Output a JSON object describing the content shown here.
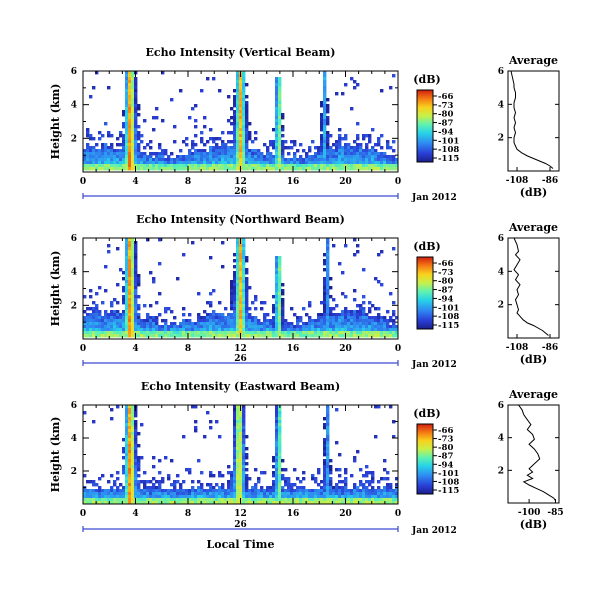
{
  "chart_data": [
    {
      "type": "heatmap",
      "title": "Echo Intensity (Vertical Beam)",
      "ylabel": "Height (km)",
      "xticks": [
        "0",
        "4",
        "8",
        "12",
        "16",
        "20",
        "0"
      ],
      "yticks": [
        "2",
        "4",
        "6"
      ],
      "xlim": [
        0,
        24
      ],
      "ylim": [
        0,
        6
      ],
      "date_marker": "26",
      "date_label": "Jan 2012",
      "colorbar": {
        "unit": "(dB)",
        "ticks": [
          "-66",
          "-73",
          "-80",
          "-87",
          "-94",
          "-101",
          "-108",
          "-115"
        ]
      },
      "average_profile": {
        "title": "Average",
        "xlabel": "(dB)",
        "xticks": [
          "-108",
          "-86"
        ],
        "yticks": [
          "2",
          "4",
          "6"
        ],
        "xlim": [
          -114,
          -80
        ],
        "ylim": [
          0,
          6
        ],
        "x": [
          -112,
          -111,
          -110,
          -110,
          -109,
          -109,
          -110,
          -110,
          -109,
          -110,
          -109,
          -110,
          -109,
          -110,
          -110,
          -109,
          -108,
          -105,
          -101,
          -97,
          -93,
          -89,
          -86,
          -84
        ],
        "y": [
          6.0,
          5.6,
          5.2,
          5.0,
          4.7,
          4.4,
          4.1,
          3.8,
          3.5,
          3.2,
          2.9,
          2.6,
          2.3,
          2.0,
          1.7,
          1.5,
          1.3,
          1.1,
          0.9,
          0.75,
          0.6,
          0.45,
          0.3,
          0.15
        ]
      }
    },
    {
      "type": "heatmap",
      "title": "Echo Intensity (Northward Beam)",
      "ylabel": "Height (km)",
      "xticks": [
        "0",
        "4",
        "8",
        "12",
        "16",
        "20",
        "0"
      ],
      "yticks": [
        "2",
        "4",
        "6"
      ],
      "xlim": [
        0,
        24
      ],
      "ylim": [
        0,
        6
      ],
      "date_marker": "26",
      "date_label": "Jan 2012",
      "colorbar": {
        "unit": "(dB)",
        "ticks": [
          "-66",
          "-73",
          "-80",
          "-87",
          "-94",
          "-101",
          "-108",
          "-115"
        ]
      },
      "average_profile": {
        "title": "Average",
        "xlabel": "(dB)",
        "xticks": [
          "-108",
          "-86"
        ],
        "yticks": [
          "2",
          "4",
          "6"
        ],
        "xlim": [
          -114,
          -80
        ],
        "ylim": [
          0,
          6
        ],
        "x": [
          -110,
          -108,
          -107,
          -109,
          -106,
          -108,
          -110,
          -107,
          -109,
          -106,
          -108,
          -107,
          -109,
          -108,
          -107,
          -108,
          -106,
          -104,
          -101,
          -97,
          -94,
          -91,
          -89,
          -87
        ],
        "y": [
          6.0,
          5.6,
          5.2,
          5.0,
          4.7,
          4.4,
          4.1,
          3.8,
          3.5,
          3.2,
          2.9,
          2.6,
          2.3,
          2.0,
          1.7,
          1.5,
          1.3,
          1.1,
          0.9,
          0.75,
          0.6,
          0.45,
          0.3,
          0.15
        ]
      }
    },
    {
      "type": "heatmap",
      "title": "Echo Intensity (Eastward Beam)",
      "ylabel": "Height (km)",
      "xlabel": "Local Time",
      "xticks": [
        "0",
        "4",
        "8",
        "12",
        "16",
        "20",
        "0"
      ],
      "yticks": [
        "2",
        "4",
        "6"
      ],
      "xlim": [
        0,
        24
      ],
      "ylim": [
        0,
        6
      ],
      "date_marker": "26",
      "date_label": "Jan 2012",
      "colorbar": {
        "unit": "(dB)",
        "ticks": [
          "-66",
          "-73",
          "-80",
          "-87",
          "-94",
          "-101",
          "-108",
          "-115"
        ]
      },
      "average_profile": {
        "title": "Average",
        "xlabel": "(dB)",
        "xticks": [
          "-100",
          "-85"
        ],
        "yticks": [
          "2",
          "4",
          "6"
        ],
        "xlim": [
          -112,
          -83
        ],
        "ylim": [
          0,
          6
        ],
        "x": [
          -106,
          -104,
          -103,
          -101,
          -99,
          -101,
          -98,
          -97,
          -100,
          -97,
          -95,
          -94,
          -97,
          -100,
          -98,
          -101,
          -98,
          -103,
          -100,
          -96,
          -92,
          -89,
          -86,
          -85
        ],
        "y": [
          6.0,
          5.7,
          5.4,
          5.1,
          4.8,
          4.5,
          4.2,
          3.9,
          3.6,
          3.3,
          3.0,
          2.7,
          2.4,
          2.1,
          1.9,
          1.7,
          1.5,
          1.3,
          1.1,
          0.9,
          0.7,
          0.5,
          0.3,
          0.15
        ]
      }
    }
  ]
}
